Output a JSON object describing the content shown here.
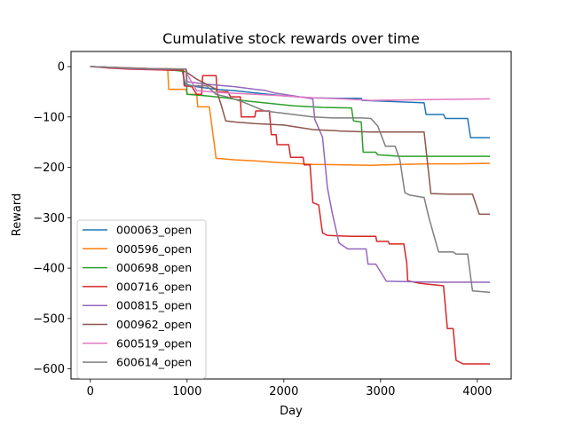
{
  "chart_data": {
    "type": "line",
    "title": "Cumulative stock rewards over time",
    "xlabel": "Day",
    "ylabel": "Reward",
    "xlim": [
      -200,
      4350
    ],
    "ylim": [
      -620,
      30
    ],
    "xticks": [
      0,
      1000,
      2000,
      3000,
      4000
    ],
    "yticks": [
      0,
      -100,
      -200,
      -300,
      -400,
      -500,
      -600
    ],
    "grid": false,
    "legend_position": "lower-left",
    "series": [
      {
        "name": "000063_open",
        "color": "#1f77b4",
        "points": [
          [
            0,
            0
          ],
          [
            300,
            -2
          ],
          [
            600,
            -5
          ],
          [
            950,
            -8
          ],
          [
            980,
            -35
          ],
          [
            1100,
            -40
          ],
          [
            1300,
            -45
          ],
          [
            1500,
            -48
          ],
          [
            1700,
            -52
          ],
          [
            2000,
            -58
          ],
          [
            2300,
            -62
          ],
          [
            2600,
            -63
          ],
          [
            2800,
            -63
          ],
          [
            2810,
            -67
          ],
          [
            3200,
            -70
          ],
          [
            3450,
            -72
          ],
          [
            3470,
            -95
          ],
          [
            3650,
            -95
          ],
          [
            3670,
            -103
          ],
          [
            3900,
            -103
          ],
          [
            3930,
            -141
          ],
          [
            4130,
            -141
          ]
        ]
      },
      {
        "name": "000596_open",
        "color": "#ff7f0e",
        "points": [
          [
            0,
            0
          ],
          [
            500,
            -3
          ],
          [
            800,
            -5
          ],
          [
            810,
            -45
          ],
          [
            990,
            -45
          ],
          [
            1000,
            -55
          ],
          [
            1100,
            -55
          ],
          [
            1110,
            -80
          ],
          [
            1230,
            -80
          ],
          [
            1300,
            -182
          ],
          [
            1500,
            -185
          ],
          [
            1700,
            -187
          ],
          [
            1900,
            -190
          ],
          [
            2100,
            -192
          ],
          [
            2300,
            -194
          ],
          [
            2600,
            -195
          ],
          [
            2900,
            -196
          ],
          [
            3200,
            -194
          ],
          [
            3500,
            -193
          ],
          [
            3800,
            -193
          ],
          [
            4130,
            -192
          ]
        ]
      },
      {
        "name": "000698_open",
        "color": "#2ca02c",
        "points": [
          [
            0,
            0
          ],
          [
            400,
            -3
          ],
          [
            800,
            -6
          ],
          [
            990,
            -10
          ],
          [
            1000,
            -55
          ],
          [
            1200,
            -58
          ],
          [
            1400,
            -62
          ],
          [
            1600,
            -68
          ],
          [
            1800,
            -72
          ],
          [
            2100,
            -78
          ],
          [
            2400,
            -81
          ],
          [
            2700,
            -82
          ],
          [
            2720,
            -108
          ],
          [
            2800,
            -110
          ],
          [
            2820,
            -170
          ],
          [
            2950,
            -170
          ],
          [
            2970,
            -175
          ],
          [
            3200,
            -178
          ],
          [
            3600,
            -178
          ],
          [
            4130,
            -178
          ]
        ]
      },
      {
        "name": "000716_open",
        "color": "#d62728",
        "points": [
          [
            0,
            0
          ],
          [
            200,
            -3
          ],
          [
            400,
            -5
          ],
          [
            800,
            -7
          ],
          [
            960,
            -7
          ],
          [
            970,
            -38
          ],
          [
            1050,
            -40
          ],
          [
            1100,
            -55
          ],
          [
            1150,
            -55
          ],
          [
            1160,
            -18
          ],
          [
            1300,
            -18
          ],
          [
            1310,
            -50
          ],
          [
            1420,
            -50
          ],
          [
            1450,
            -60
          ],
          [
            1550,
            -60
          ],
          [
            1560,
            -100
          ],
          [
            1700,
            -100
          ],
          [
            1710,
            -88
          ],
          [
            1850,
            -88
          ],
          [
            1870,
            -135
          ],
          [
            1920,
            -135
          ],
          [
            1930,
            -155
          ],
          [
            2050,
            -155
          ],
          [
            2070,
            -180
          ],
          [
            2200,
            -180
          ],
          [
            2210,
            -195
          ],
          [
            2270,
            -195
          ],
          [
            2300,
            -270
          ],
          [
            2360,
            -275
          ],
          [
            2400,
            -330
          ],
          [
            2450,
            -335
          ],
          [
            2700,
            -337
          ],
          [
            2950,
            -337
          ],
          [
            2960,
            -347
          ],
          [
            3080,
            -347
          ],
          [
            3090,
            -352
          ],
          [
            3240,
            -352
          ],
          [
            3270,
            -390
          ],
          [
            3280,
            -425
          ],
          [
            3400,
            -430
          ],
          [
            3650,
            -435
          ],
          [
            3690,
            -520
          ],
          [
            3750,
            -520
          ],
          [
            3780,
            -583
          ],
          [
            3850,
            -590
          ],
          [
            4130,
            -590
          ]
        ]
      },
      {
        "name": "000815_open",
        "color": "#9467bd",
        "points": [
          [
            0,
            0
          ],
          [
            300,
            -3
          ],
          [
            600,
            -5
          ],
          [
            990,
            -5
          ],
          [
            1000,
            -30
          ],
          [
            1200,
            -35
          ],
          [
            1500,
            -40
          ],
          [
            1700,
            -45
          ],
          [
            1800,
            -47
          ],
          [
            1900,
            -52
          ],
          [
            2100,
            -58
          ],
          [
            2300,
            -64
          ],
          [
            2320,
            -105
          ],
          [
            2400,
            -140
          ],
          [
            2450,
            -240
          ],
          [
            2500,
            -290
          ],
          [
            2570,
            -350
          ],
          [
            2660,
            -362
          ],
          [
            2850,
            -362
          ],
          [
            2870,
            -392
          ],
          [
            2950,
            -392
          ],
          [
            3060,
            -426
          ],
          [
            3300,
            -427
          ],
          [
            3600,
            -428
          ],
          [
            4130,
            -428
          ]
        ]
      },
      {
        "name": "000962_open",
        "color": "#8c564b",
        "points": [
          [
            0,
            0
          ],
          [
            300,
            -2
          ],
          [
            600,
            -4
          ],
          [
            990,
            -5
          ],
          [
            1000,
            -12
          ],
          [
            1100,
            -25
          ],
          [
            1300,
            -45
          ],
          [
            1350,
            -75
          ],
          [
            1400,
            -108
          ],
          [
            1500,
            -110
          ],
          [
            1700,
            -113
          ],
          [
            2000,
            -116
          ],
          [
            2300,
            -125
          ],
          [
            2600,
            -128
          ],
          [
            2900,
            -130
          ],
          [
            3100,
            -130
          ],
          [
            3300,
            -130
          ],
          [
            3450,
            -130
          ],
          [
            3520,
            -252
          ],
          [
            3700,
            -253
          ],
          [
            3950,
            -253
          ],
          [
            4020,
            -293
          ],
          [
            4130,
            -293
          ]
        ]
      },
      {
        "name": "600519_open",
        "color": "#e377c2",
        "points": [
          [
            0,
            0
          ],
          [
            300,
            -2
          ],
          [
            600,
            -4
          ],
          [
            980,
            -5
          ],
          [
            1000,
            -15
          ],
          [
            1100,
            -48
          ],
          [
            1400,
            -52
          ],
          [
            1700,
            -55
          ],
          [
            2000,
            -58
          ],
          [
            2300,
            -62
          ],
          [
            2600,
            -64
          ],
          [
            2900,
            -67
          ],
          [
            3300,
            -66
          ],
          [
            3700,
            -65
          ],
          [
            4130,
            -64
          ]
        ]
      },
      {
        "name": "600614_open",
        "color": "#7f7f7f",
        "points": [
          [
            0,
            0
          ],
          [
            300,
            -2
          ],
          [
            600,
            -4
          ],
          [
            990,
            -5
          ],
          [
            1000,
            -38
          ],
          [
            1200,
            -38
          ],
          [
            1300,
            -55
          ],
          [
            1450,
            -62
          ],
          [
            1600,
            -72
          ],
          [
            1800,
            -88
          ],
          [
            2100,
            -95
          ],
          [
            2300,
            -100
          ],
          [
            2500,
            -102
          ],
          [
            2800,
            -102
          ],
          [
            2900,
            -103
          ],
          [
            2970,
            -118
          ],
          [
            3050,
            -158
          ],
          [
            3150,
            -158
          ],
          [
            3200,
            -185
          ],
          [
            3250,
            -250
          ],
          [
            3300,
            -255
          ],
          [
            3450,
            -260
          ],
          [
            3500,
            -300
          ],
          [
            3600,
            -368
          ],
          [
            3750,
            -368
          ],
          [
            3780,
            -372
          ],
          [
            3900,
            -372
          ],
          [
            3950,
            -445
          ],
          [
            4130,
            -448
          ]
        ]
      }
    ]
  }
}
